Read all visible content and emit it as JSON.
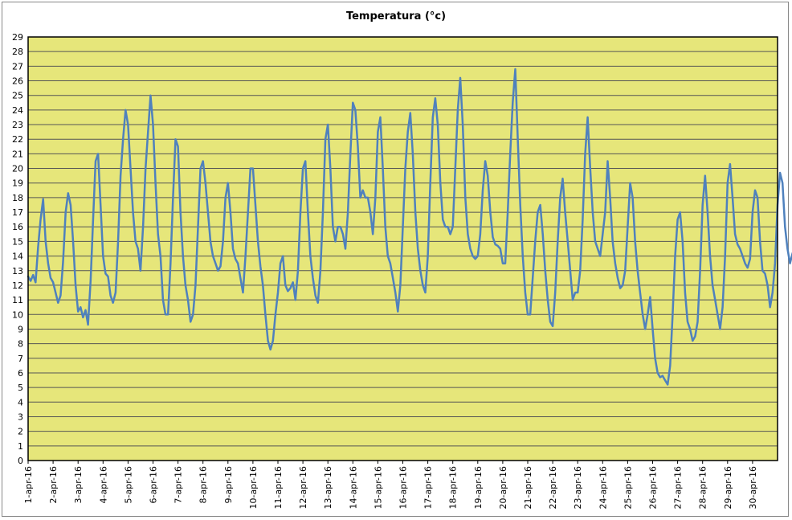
{
  "chart_data": {
    "type": "line",
    "title": "Temperatura (°c)",
    "xlabel": "",
    "ylabel": "",
    "ylim": [
      0,
      29
    ],
    "y_ticks": [
      "0",
      "1",
      "2",
      "3",
      "4",
      "5",
      "6",
      "7",
      "8",
      "9",
      "10",
      "11",
      "12",
      "13",
      "14",
      "15",
      "16",
      "17",
      "18",
      "19",
      "20",
      "21",
      "22",
      "23",
      "24",
      "25",
      "26",
      "27",
      "28",
      "29"
    ],
    "x_ticks": [
      "1-apr-16",
      "2-apr-16",
      "3-apr-16",
      "4-apr-16",
      "5-apr-16",
      "6-apr-16",
      "7-apr-16",
      "8-apr-16",
      "9-apr-16",
      "10-apr-16",
      "11-apr-16",
      "12-apr-16",
      "13-apr-16",
      "14-apr-16",
      "15-apr-16",
      "16-apr-16",
      "17-apr-16",
      "18-apr-16",
      "19-apr-16",
      "20-apr-16",
      "21-apr-16",
      "22-apr-16",
      "23-apr-16",
      "24-apr-16",
      "25-apr-16",
      "26-apr-16",
      "27-apr-16",
      "28-apr-16",
      "29-apr-16",
      "30-apr-16"
    ],
    "grid": "horizontal",
    "legend": "none",
    "colors": {
      "plot_bg": "#e6e67a",
      "series": "#4f81bd",
      "grid": "#555555",
      "plot_border": "#000000"
    },
    "series": [
      {
        "values": [
          [
            0.0,
            12.6
          ],
          [
            0.1,
            12.3
          ],
          [
            0.2,
            12.7
          ],
          [
            0.3,
            12.2
          ],
          [
            0.4,
            14.6
          ],
          [
            0.5,
            16.5
          ],
          [
            0.6,
            17.9
          ],
          [
            0.7,
            15.0
          ],
          [
            0.8,
            13.5
          ],
          [
            0.9,
            12.5
          ],
          [
            1.0,
            12.2
          ],
          [
            1.1,
            11.5
          ],
          [
            1.2,
            10.8
          ],
          [
            1.3,
            11.3
          ],
          [
            1.4,
            13.6
          ],
          [
            1.5,
            17.0
          ],
          [
            1.6,
            18.3
          ],
          [
            1.7,
            17.5
          ],
          [
            1.8,
            15.0
          ],
          [
            1.9,
            12.0
          ],
          [
            2.0,
            10.2
          ],
          [
            2.1,
            10.5
          ],
          [
            2.2,
            9.8
          ],
          [
            2.3,
            10.3
          ],
          [
            2.4,
            9.3
          ],
          [
            2.5,
            12.3
          ],
          [
            2.6,
            16.5
          ],
          [
            2.7,
            20.5
          ],
          [
            2.8,
            21.0
          ],
          [
            2.9,
            17.5
          ],
          [
            3.0,
            14.0
          ],
          [
            3.1,
            12.8
          ],
          [
            3.2,
            12.6
          ],
          [
            3.3,
            11.3
          ],
          [
            3.4,
            10.8
          ],
          [
            3.5,
            11.5
          ],
          [
            3.6,
            15.0
          ],
          [
            3.7,
            19.5
          ],
          [
            3.8,
            22.0
          ],
          [
            3.9,
            24.0
          ],
          [
            4.0,
            23.0
          ],
          [
            4.1,
            20.0
          ],
          [
            4.2,
            17.0
          ],
          [
            4.3,
            15.0
          ],
          [
            4.4,
            14.5
          ],
          [
            4.5,
            13.0
          ],
          [
            4.6,
            16.0
          ],
          [
            4.7,
            20.0
          ],
          [
            4.8,
            22.5
          ],
          [
            4.9,
            25.0
          ],
          [
            5.0,
            23.0
          ],
          [
            5.1,
            19.0
          ],
          [
            5.2,
            15.5
          ],
          [
            5.3,
            14.0
          ],
          [
            5.4,
            11.0
          ],
          [
            5.5,
            10.0
          ],
          [
            5.6,
            10.0
          ],
          [
            5.7,
            13.5
          ],
          [
            5.8,
            18.0
          ],
          [
            5.9,
            22.0
          ],
          [
            6.0,
            21.5
          ],
          [
            6.1,
            17.0
          ],
          [
            6.2,
            14.0
          ],
          [
            6.3,
            12.0
          ],
          [
            6.4,
            11.0
          ],
          [
            6.5,
            9.5
          ],
          [
            6.6,
            10.0
          ],
          [
            6.7,
            12.0
          ],
          [
            6.8,
            16.0
          ],
          [
            6.9,
            20.0
          ],
          [
            7.0,
            20.5
          ],
          [
            7.1,
            19.0
          ],
          [
            7.2,
            17.0
          ],
          [
            7.3,
            15.0
          ],
          [
            7.4,
            14.0
          ],
          [
            7.5,
            13.5
          ],
          [
            7.6,
            13.0
          ],
          [
            7.7,
            13.3
          ],
          [
            7.8,
            15.0
          ],
          [
            7.9,
            18.0
          ],
          [
            8.0,
            19.0
          ],
          [
            8.1,
            17.0
          ],
          [
            8.2,
            14.5
          ],
          [
            8.3,
            13.8
          ],
          [
            8.4,
            13.5
          ],
          [
            8.5,
            12.5
          ],
          [
            8.6,
            11.5
          ],
          [
            8.7,
            14.0
          ],
          [
            8.8,
            17.0
          ],
          [
            8.9,
            20.0
          ],
          [
            9.0,
            20.0
          ],
          [
            9.1,
            17.5
          ],
          [
            9.2,
            15.0
          ],
          [
            9.3,
            13.3
          ],
          [
            9.4,
            12.0
          ],
          [
            9.5,
            10.0
          ],
          [
            9.6,
            8.2
          ],
          [
            9.7,
            7.6
          ],
          [
            9.8,
            8.2
          ],
          [
            9.9,
            10.0
          ],
          [
            10.0,
            11.5
          ],
          [
            10.1,
            13.5
          ],
          [
            10.2,
            14.0
          ],
          [
            10.3,
            12.0
          ],
          [
            10.4,
            11.6
          ],
          [
            10.5,
            11.8
          ],
          [
            10.6,
            12.2
          ],
          [
            10.7,
            11.0
          ],
          [
            10.8,
            13.0
          ],
          [
            10.9,
            17.0
          ],
          [
            11.0,
            20.0
          ],
          [
            11.1,
            20.5
          ],
          [
            11.2,
            17.0
          ],
          [
            11.3,
            14.0
          ],
          [
            11.4,
            12.5
          ],
          [
            11.5,
            11.3
          ],
          [
            11.6,
            10.8
          ],
          [
            11.7,
            13.0
          ],
          [
            11.8,
            17.0
          ],
          [
            11.9,
            22.0
          ],
          [
            12.0,
            23.0
          ],
          [
            12.1,
            20.0
          ],
          [
            12.2,
            16.0
          ],
          [
            12.3,
            15.0
          ],
          [
            12.4,
            16.0
          ],
          [
            12.5,
            16.0
          ],
          [
            12.6,
            15.5
          ],
          [
            12.7,
            14.5
          ],
          [
            12.8,
            17.0
          ],
          [
            12.9,
            21.0
          ],
          [
            13.0,
            24.5
          ],
          [
            13.1,
            24.0
          ],
          [
            13.2,
            21.5
          ],
          [
            13.3,
            18.0
          ],
          [
            13.4,
            18.5
          ],
          [
            13.5,
            18.0
          ],
          [
            13.6,
            18.0
          ],
          [
            13.7,
            17.0
          ],
          [
            13.8,
            15.5
          ],
          [
            13.9,
            18.0
          ],
          [
            14.0,
            22.5
          ],
          [
            14.1,
            23.5
          ],
          [
            14.2,
            20.0
          ],
          [
            14.3,
            16.0
          ],
          [
            14.4,
            14.0
          ],
          [
            14.5,
            13.5
          ],
          [
            14.6,
            12.5
          ],
          [
            14.7,
            11.5
          ],
          [
            14.8,
            10.2
          ],
          [
            14.9,
            12.0
          ],
          [
            15.0,
            16.0
          ],
          [
            15.1,
            20.0
          ],
          [
            15.2,
            22.5
          ],
          [
            15.3,
            23.8
          ],
          [
            15.4,
            21.0
          ],
          [
            15.5,
            17.0
          ],
          [
            15.6,
            14.5
          ],
          [
            15.7,
            13.0
          ],
          [
            15.8,
            12.0
          ],
          [
            15.9,
            11.5
          ],
          [
            16.0,
            14.0
          ],
          [
            16.1,
            19.0
          ],
          [
            16.2,
            23.5
          ],
          [
            16.3,
            24.8
          ],
          [
            16.4,
            23.0
          ],
          [
            16.5,
            19.0
          ],
          [
            16.6,
            16.5
          ],
          [
            16.7,
            16.0
          ],
          [
            16.8,
            16.0
          ],
          [
            16.9,
            15.5
          ],
          [
            17.0,
            16.0
          ],
          [
            17.1,
            20.0
          ],
          [
            17.2,
            24.0
          ],
          [
            17.3,
            26.2
          ],
          [
            17.4,
            23.0
          ],
          [
            17.5,
            18.0
          ],
          [
            17.6,
            15.5
          ],
          [
            17.7,
            14.5
          ],
          [
            17.8,
            14.0
          ],
          [
            17.9,
            13.8
          ],
          [
            18.0,
            14.0
          ],
          [
            18.1,
            15.5
          ],
          [
            18.2,
            18.5
          ],
          [
            18.3,
            20.5
          ],
          [
            18.4,
            19.5
          ],
          [
            18.5,
            17.0
          ],
          [
            18.6,
            15.3
          ],
          [
            18.7,
            14.8
          ],
          [
            18.8,
            14.7
          ],
          [
            18.9,
            14.5
          ],
          [
            19.0,
            13.5
          ],
          [
            19.1,
            13.5
          ],
          [
            19.2,
            17.0
          ],
          [
            19.3,
            21.0
          ],
          [
            19.4,
            24.5
          ],
          [
            19.5,
            26.8
          ],
          [
            19.6,
            22.0
          ],
          [
            19.7,
            17.5
          ],
          [
            19.8,
            14.0
          ],
          [
            19.9,
            11.5
          ],
          [
            20.0,
            10.0
          ],
          [
            20.1,
            10.0
          ],
          [
            20.2,
            12.5
          ],
          [
            20.3,
            15.0
          ],
          [
            20.4,
            17.0
          ],
          [
            20.5,
            17.5
          ],
          [
            20.6,
            15.5
          ],
          [
            20.7,
            13.0
          ],
          [
            20.8,
            11.0
          ],
          [
            20.9,
            9.5
          ],
          [
            21.0,
            9.2
          ],
          [
            21.1,
            11.5
          ],
          [
            21.2,
            15.0
          ],
          [
            21.3,
            18.0
          ],
          [
            21.4,
            19.3
          ],
          [
            21.5,
            17.0
          ],
          [
            21.6,
            15.0
          ],
          [
            21.7,
            13.0
          ],
          [
            21.8,
            11.0
          ],
          [
            21.9,
            11.5
          ],
          [
            22.0,
            11.5
          ],
          [
            22.1,
            13.0
          ],
          [
            22.2,
            16.5
          ],
          [
            22.3,
            21.0
          ],
          [
            22.4,
            23.5
          ],
          [
            22.5,
            20.0
          ],
          [
            22.6,
            17.0
          ],
          [
            22.7,
            15.0
          ],
          [
            22.8,
            14.5
          ],
          [
            22.9,
            14.0
          ],
          [
            23.0,
            15.5
          ],
          [
            23.1,
            17.0
          ],
          [
            23.2,
            20.5
          ],
          [
            23.3,
            18.0
          ],
          [
            23.4,
            15.0
          ],
          [
            23.5,
            13.5
          ],
          [
            23.6,
            12.5
          ],
          [
            23.7,
            11.8
          ],
          [
            23.8,
            12.0
          ],
          [
            23.9,
            13.0
          ],
          [
            24.0,
            16.0
          ],
          [
            24.1,
            19.0
          ],
          [
            24.2,
            18.0
          ],
          [
            24.3,
            15.0
          ],
          [
            24.4,
            13.0
          ],
          [
            24.5,
            11.5
          ],
          [
            24.6,
            10.0
          ],
          [
            24.7,
            9.0
          ],
          [
            24.8,
            10.0
          ],
          [
            24.9,
            11.2
          ],
          [
            25.0,
            9.0
          ],
          [
            25.1,
            7.0
          ],
          [
            25.2,
            6.0
          ],
          [
            25.3,
            5.7
          ],
          [
            25.4,
            5.8
          ],
          [
            25.5,
            5.5
          ],
          [
            25.6,
            5.2
          ],
          [
            25.7,
            6.5
          ],
          [
            25.8,
            10.0
          ],
          [
            25.9,
            14.0
          ],
          [
            26.0,
            16.5
          ],
          [
            26.1,
            17.0
          ],
          [
            26.2,
            15.0
          ],
          [
            26.3,
            11.5
          ],
          [
            26.4,
            9.5
          ],
          [
            26.5,
            9.0
          ],
          [
            26.6,
            8.2
          ],
          [
            26.7,
            8.5
          ],
          [
            26.8,
            9.5
          ],
          [
            26.9,
            13.0
          ],
          [
            27.0,
            17.5
          ],
          [
            27.1,
            19.5
          ],
          [
            27.2,
            17.0
          ],
          [
            27.3,
            14.0
          ],
          [
            27.4,
            12.0
          ],
          [
            27.5,
            11.0
          ],
          [
            27.6,
            10.0
          ],
          [
            27.7,
            9.0
          ],
          [
            27.8,
            10.5
          ],
          [
            27.9,
            14.0
          ],
          [
            28.0,
            19.0
          ],
          [
            28.1,
            20.3
          ],
          [
            28.2,
            18.0
          ],
          [
            28.3,
            15.5
          ],
          [
            28.4,
            14.8
          ],
          [
            28.5,
            14.5
          ],
          [
            28.6,
            14.0
          ],
          [
            28.7,
            13.5
          ],
          [
            28.8,
            13.2
          ],
          [
            28.9,
            13.8
          ],
          [
            29.0,
            17.0
          ],
          [
            29.1,
            18.5
          ],
          [
            29.2,
            18.0
          ],
          [
            29.3,
            15.0
          ],
          [
            29.4,
            13.0
          ],
          [
            29.5,
            12.8
          ],
          [
            29.6,
            12.0
          ],
          [
            29.7,
            10.5
          ],
          [
            29.8,
            11.5
          ],
          [
            29.9,
            13.5
          ],
          [
            30.0,
            17.5
          ],
          [
            30.1,
            19.7
          ],
          [
            30.2,
            19.0
          ],
          [
            30.3,
            16.0
          ],
          [
            30.4,
            14.5
          ],
          [
            30.5,
            13.5
          ],
          [
            30.6,
            14.2
          ]
        ]
      }
    ]
  }
}
